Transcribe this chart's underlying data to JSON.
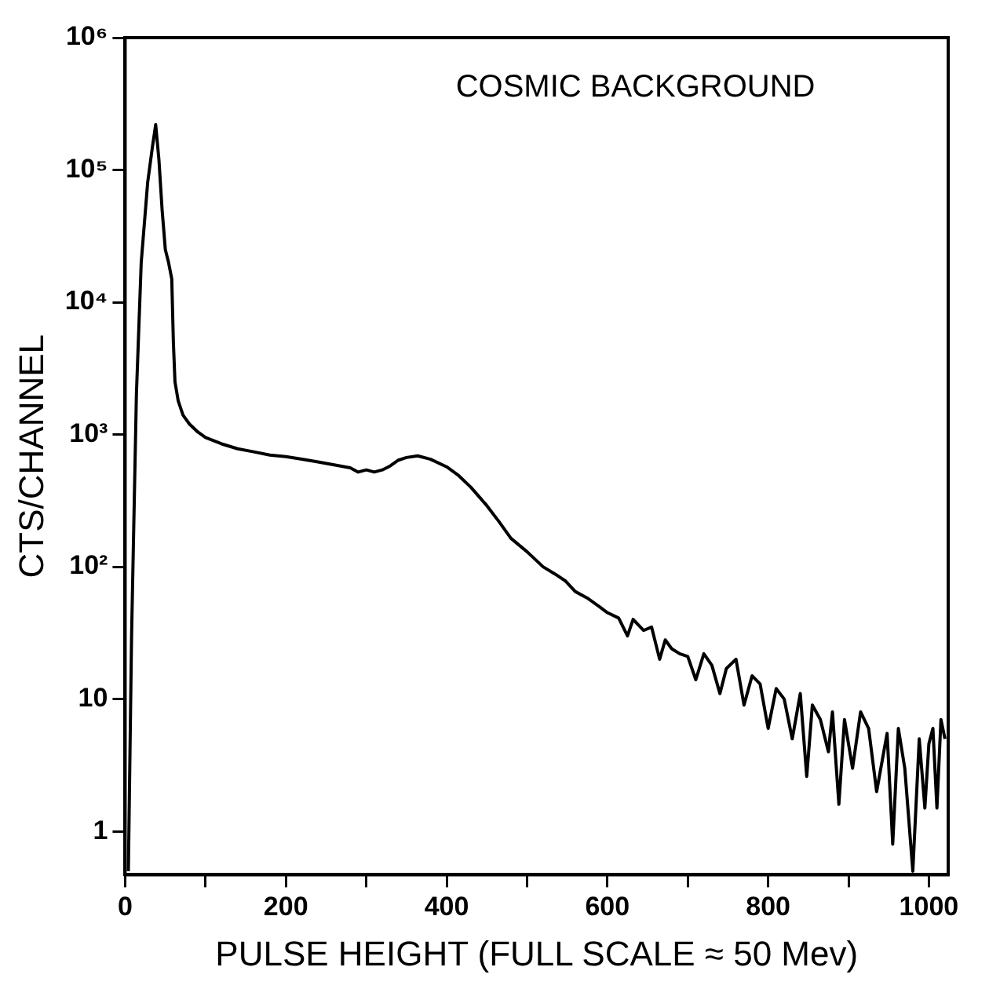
{
  "chart_data": {
    "type": "line",
    "title": "COSMIC BACKGROUND",
    "xlabel": "PULSE HEIGHT (FULL SCALE ≈ 50 Mev)",
    "ylabel": "CTS/CHANNEL",
    "log": "y",
    "grid": false,
    "legend": false,
    "marker": "none",
    "line_style": "solid",
    "xlim": [
      0,
      1024
    ],
    "ylim": [
      0.47,
      1000000
    ],
    "xticks": [
      0,
      {
        "value": 100,
        "label": null
      },
      200,
      {
        "value": 300,
        "label": null
      },
      400,
      {
        "value": 500,
        "label": null
      },
      600,
      {
        "value": 700,
        "label": null
      },
      800,
      {
        "value": 900,
        "label": null
      },
      1000
    ],
    "yticks": [
      1,
      10,
      {
        "value": 100,
        "label": "10²"
      },
      {
        "value": 1000,
        "label": "10³"
      },
      {
        "value": 10000,
        "label": "10⁴"
      },
      {
        "value": 100000,
        "label": "10⁵"
      },
      {
        "value": 1000000,
        "label": "10⁶"
      }
    ],
    "series": [
      {
        "color": "#000000",
        "x": [
          4,
          8,
          14,
          20,
          28,
          34,
          38,
          42,
          46,
          50,
          54,
          58,
          60,
          62,
          66,
          72,
          80,
          90,
          100,
          120,
          140,
          160,
          180,
          200,
          220,
          240,
          260,
          280,
          290,
          300,
          310,
          320,
          330,
          340,
          350,
          364,
          380,
          400,
          414,
          430,
          450,
          465,
          480,
          500,
          520,
          535,
          548,
          560,
          575,
          590,
          600,
          614,
          625,
          632,
          645,
          655,
          665,
          672,
          680,
          690,
          700,
          710,
          720,
          730,
          740,
          748,
          760,
          770,
          780,
          790,
          800,
          810,
          820,
          830,
          840,
          848,
          855,
          865,
          875,
          880,
          888,
          895,
          905,
          915,
          925,
          935,
          948,
          955,
          962,
          970,
          980,
          988,
          995,
          1000,
          1005,
          1010,
          1015,
          1020
        ],
        "values": [
          0.5,
          30,
          2000,
          20000,
          80000,
          150000,
          220000,
          120000,
          50000,
          25000,
          20000,
          15000,
          5000,
          2500,
          1800,
          1400,
          1200,
          1050,
          950,
          850,
          780,
          740,
          700,
          680,
          650,
          620,
          590,
          560,
          520,
          540,
          520,
          540,
          580,
          640,
          670,
          690,
          650,
          570,
          495,
          400,
          290,
          220,
          164,
          130,
          100,
          88,
          78,
          65,
          58,
          50,
          45,
          41,
          30,
          40,
          33,
          35,
          20,
          28,
          24,
          22,
          21,
          14,
          22,
          18,
          11,
          17,
          20,
          9,
          15,
          13,
          6,
          12,
          10,
          5,
          11,
          2.6,
          9,
          7,
          4,
          8,
          1.6,
          7,
          3,
          8,
          6,
          2,
          5.5,
          0.8,
          6,
          3,
          0.5,
          5,
          1.5,
          4.6,
          6,
          1.5,
          7,
          5
        ]
      }
    ]
  }
}
